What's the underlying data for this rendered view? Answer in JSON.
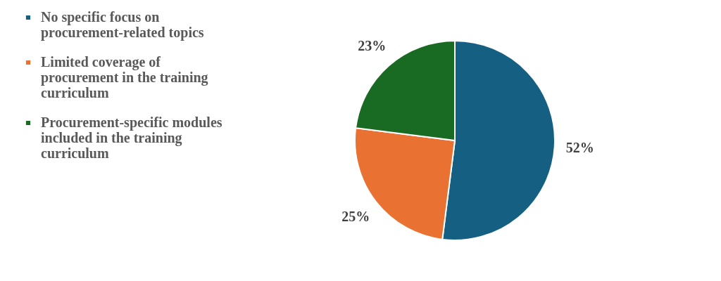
{
  "chart_data": {
    "type": "pie",
    "categories": [
      "No specific focus on procurement-related topics",
      "Limited coverage of procurement in the training curriculum",
      "Procurement-specific modules included in the training curriculum"
    ],
    "values": [
      52,
      25,
      23
    ],
    "colors": [
      "#156082",
      "#e97132",
      "#196b24"
    ],
    "value_labels": [
      "52%",
      "25%",
      "23%"
    ],
    "legend": "left"
  }
}
